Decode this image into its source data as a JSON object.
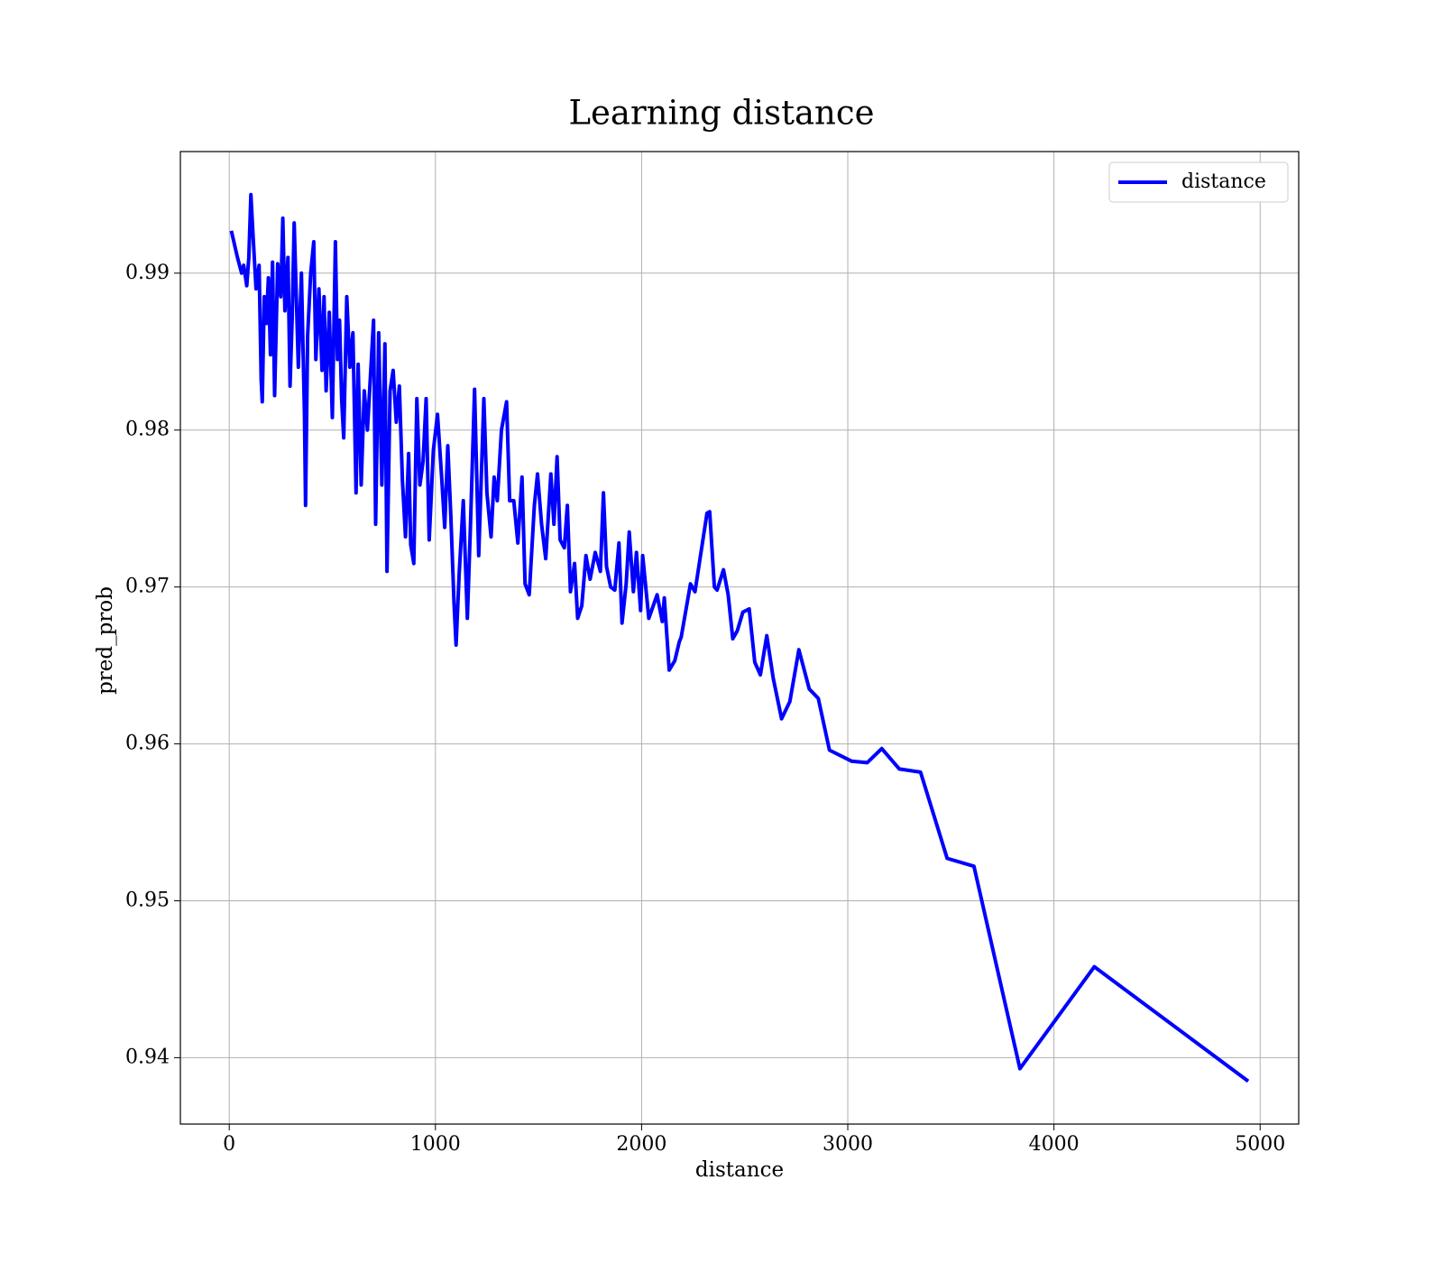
{
  "chart_data": {
    "type": "line",
    "title": "Learning distance",
    "xlabel": "distance",
    "ylabel": "pred_prob",
    "xlim": [
      -237,
      5187
    ],
    "ylim": [
      0.93577,
      0.99775
    ],
    "xticks": [
      0,
      1000,
      2000,
      3000,
      4000,
      5000
    ],
    "yticks": [
      0.94,
      0.95,
      0.96,
      0.97,
      0.98,
      0.99
    ],
    "grid": true,
    "legend": "upper right",
    "x": [
      10,
      40,
      60,
      70,
      85,
      95,
      105,
      115,
      130,
      145,
      155,
      160,
      170,
      180,
      190,
      200,
      210,
      220,
      235,
      250,
      260,
      270,
      285,
      295,
      305,
      315,
      325,
      335,
      350,
      365,
      370,
      380,
      395,
      410,
      420,
      435,
      450,
      460,
      470,
      485,
      500,
      515,
      525,
      535,
      545,
      555,
      570,
      585,
      600,
      615,
      625,
      640,
      655,
      670,
      685,
      700,
      710,
      725,
      740,
      755,
      765,
      780,
      795,
      810,
      825,
      840,
      855,
      870,
      880,
      895,
      910,
      925,
      940,
      955,
      970,
      990,
      1010,
      1030,
      1045,
      1060,
      1075,
      1090,
      1100,
      1115,
      1135,
      1155,
      1170,
      1190,
      1210,
      1235,
      1250,
      1270,
      1285,
      1300,
      1320,
      1345,
      1360,
      1380,
      1400,
      1420,
      1435,
      1455,
      1480,
      1495,
      1515,
      1535,
      1560,
      1575,
      1590,
      1605,
      1625,
      1640,
      1655,
      1675,
      1690,
      1710,
      1730,
      1750,
      1775,
      1800,
      1815,
      1830,
      1850,
      1870,
      1890,
      1905,
      1925,
      1940,
      1960,
      1975,
      1995,
      2005,
      2035,
      2075,
      2100,
      2110,
      2134,
      2161,
      2183,
      2192,
      2237,
      2259,
      2317,
      2330,
      2353,
      2366,
      2397,
      2420,
      2442,
      2464,
      2491,
      2522,
      2549,
      2576,
      2607,
      2638,
      2679,
      2719,
      2763,
      2813,
      2857,
      2911,
      3018,
      3094,
      3165,
      3250,
      3353,
      3482,
      3612,
      3835,
      4196,
      4942
    ],
    "series": [
      {
        "name": "distance",
        "color": "#0000ff",
        "values": [
          0.9927,
          0.991,
          0.99,
          0.9905,
          0.9892,
          0.991,
          0.995,
          0.9925,
          0.989,
          0.9905,
          0.9832,
          0.9818,
          0.9885,
          0.9868,
          0.9897,
          0.9848,
          0.9907,
          0.9822,
          0.9906,
          0.9885,
          0.9935,
          0.9876,
          0.991,
          0.9828,
          0.987,
          0.9932,
          0.9886,
          0.984,
          0.99,
          0.981,
          0.9752,
          0.986,
          0.99,
          0.992,
          0.9845,
          0.989,
          0.9838,
          0.9885,
          0.9825,
          0.9875,
          0.9808,
          0.992,
          0.9845,
          0.987,
          0.982,
          0.9795,
          0.9885,
          0.984,
          0.9862,
          0.976,
          0.9842,
          0.9765,
          0.9825,
          0.98,
          0.9835,
          0.987,
          0.974,
          0.9862,
          0.9765,
          0.9855,
          0.971,
          0.9825,
          0.9838,
          0.9805,
          0.9828,
          0.9768,
          0.9732,
          0.9785,
          0.9727,
          0.9715,
          0.982,
          0.9765,
          0.978,
          0.982,
          0.973,
          0.9787,
          0.981,
          0.977,
          0.9738,
          0.979,
          0.9745,
          0.969,
          0.9663,
          0.9708,
          0.9755,
          0.968,
          0.974,
          0.9826,
          0.972,
          0.982,
          0.976,
          0.9732,
          0.977,
          0.9755,
          0.98,
          0.9818,
          0.9755,
          0.9755,
          0.9728,
          0.977,
          0.9702,
          0.9695,
          0.9752,
          0.9772,
          0.974,
          0.9718,
          0.9772,
          0.974,
          0.9783,
          0.973,
          0.9725,
          0.9752,
          0.9697,
          0.9715,
          0.968,
          0.9688,
          0.972,
          0.9705,
          0.9722,
          0.971,
          0.976,
          0.9713,
          0.97,
          0.9698,
          0.9728,
          0.9677,
          0.9702,
          0.9735,
          0.9697,
          0.9722,
          0.9685,
          0.972,
          0.968,
          0.9695,
          0.9678,
          0.9693,
          0.9647,
          0.9653,
          0.9665,
          0.9668,
          0.9702,
          0.9697,
          0.9747,
          0.9748,
          0.97,
          0.9698,
          0.9711,
          0.9695,
          0.9667,
          0.9672,
          0.9684,
          0.9686,
          0.9652,
          0.9644,
          0.9669,
          0.9642,
          0.9616,
          0.9627,
          0.966,
          0.9635,
          0.9629,
          0.9596,
          0.9589,
          0.9588,
          0.9597,
          0.9584,
          0.9582,
          0.9527,
          0.9522,
          0.9393,
          0.9458,
          0.9385
        ]
      }
    ]
  }
}
